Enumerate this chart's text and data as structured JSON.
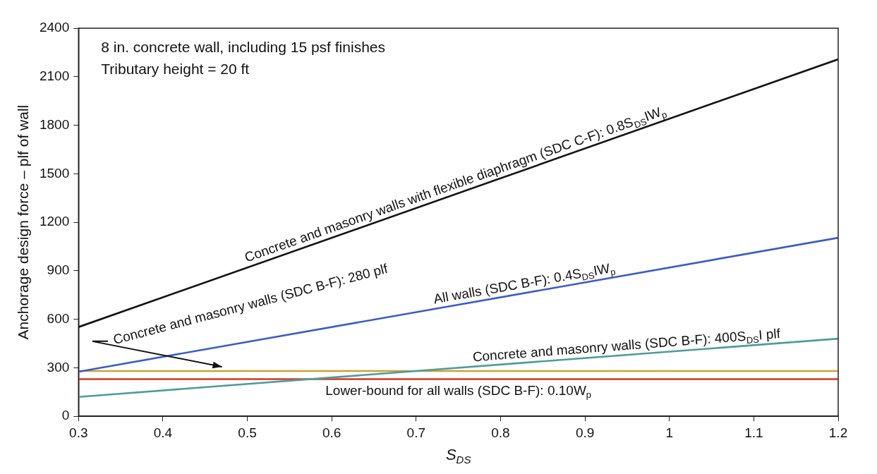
{
  "chart_data": {
    "type": "line",
    "xlabel": "S$_{DS}$",
    "ylabel": "Anchorage design force – plf of wall",
    "x": [
      0.3,
      1.2
    ],
    "series": [
      {
        "color": "#141414",
        "values": [
          552,
          2208
        ]
      },
      {
        "color": "#3d5cc4",
        "values": [
          276,
          1104
        ]
      },
      {
        "color": "#4f9c9a",
        "values": [
          120,
          480
        ]
      },
      {
        "color": "#c9a23a",
        "values": [
          280,
          280
        ]
      },
      {
        "color": "#d2381e",
        "values": [
          230,
          230
        ]
      }
    ],
    "annotations": [
      "8 in. concrete wall, including 15 psf finishes",
      "Tributary height = 20 ft",
      {
        "text": "Concrete and masonry walls with flexible diaphragm (SDC C-F): 0.8S$_{DS}$IW$_{p}$",
        "x": 0.75,
        "y": 1380
      },
      {
        "text": "All walls (SDC B-F): 0.4S$_{DS}$IW$_{p}$",
        "x": 0.83,
        "y": 764
      },
      {
        "text": "Concrete and masonry walls (SDC B-F): 400S$_{DS}$I plf",
        "x": 0.95,
        "y": 380
      },
      {
        "text": "Concrete and masonry walls (SDC B-F): 280 plf",
        "x": 0.47,
        "y": 280
      },
      {
        "text": "Lower-bound for all walls (SDC B-F): 0.10W$_{p}$",
        "x": 0.75,
        "y": 230
      }
    ],
    "xlim": [
      0.3,
      1.2
    ],
    "xticks": [
      0.3,
      0.4,
      0.5,
      0.6,
      0.7,
      0.8,
      0.9,
      1,
      1.1,
      1.2
    ],
    "ylim": [
      0,
      2400
    ],
    "yticks": [
      0,
      300,
      600,
      900,
      1200,
      1500,
      1800,
      2100,
      2400
    ],
    "marker": "none",
    "legend": false
  }
}
